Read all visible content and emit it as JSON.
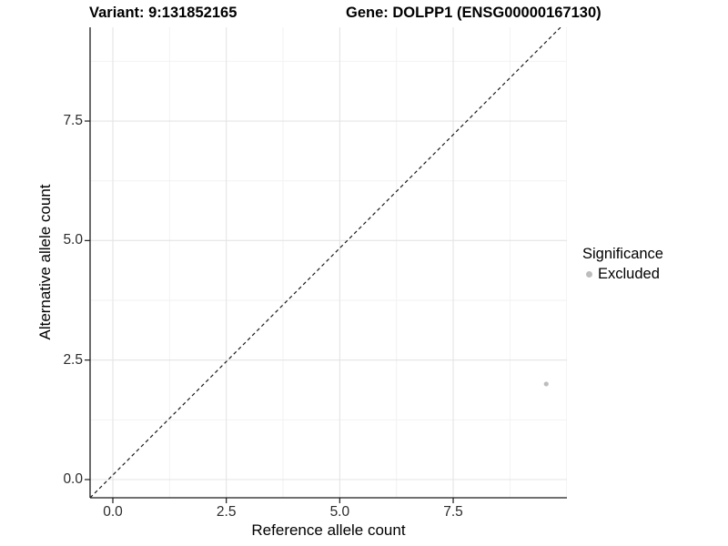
{
  "titles": {
    "variant": "Variant: 9:131852165",
    "gene": "Gene: DOLPP1 (ENSG00000167130)"
  },
  "legend": {
    "title": "Significance",
    "items": [
      {
        "label": "Excluded",
        "color": "#bdbdbd"
      }
    ]
  },
  "chart_data": {
    "type": "scatter",
    "title": "Variant: 9:131852165   Gene: DOLPP1 (ENSG00000167130)",
    "xlabel": "Reference allele count",
    "ylabel": "Alternative allele count",
    "xlim": [
      -0.48,
      10.0
    ],
    "ylim": [
      -0.38,
      9.46
    ],
    "x_ticks": {
      "values": [
        0,
        2.5,
        5,
        7.5
      ],
      "labels": [
        "0.0",
        "2.5",
        "5.0",
        "7.5"
      ]
    },
    "y_ticks": {
      "values": [
        0,
        2.5,
        5,
        7.5
      ],
      "labels": [
        "0.0",
        "2.5",
        "5.0",
        "7.5"
      ]
    },
    "x_minor_gridlines": [
      1.25,
      3.75,
      6.25,
      8.75,
      10.0
    ],
    "y_minor_gridlines": [
      1.25,
      3.75,
      6.25,
      8.75
    ],
    "grid": {
      "major_color": "#e4e4e4",
      "minor_color": "#f2f2f2",
      "grid_on": true
    },
    "background": "#ffffff",
    "axis_line_color": "#1a1a1a",
    "series": [
      {
        "name": "Excluded",
        "color": "#bdbdbd",
        "points": [
          {
            "x": 9.55,
            "y": 2
          }
        ]
      }
    ],
    "reference_line": {
      "type": "identity",
      "slope": 1,
      "intercept": 0,
      "style": "dashed",
      "color": "#1a1a1a"
    },
    "legend_position": "right"
  }
}
